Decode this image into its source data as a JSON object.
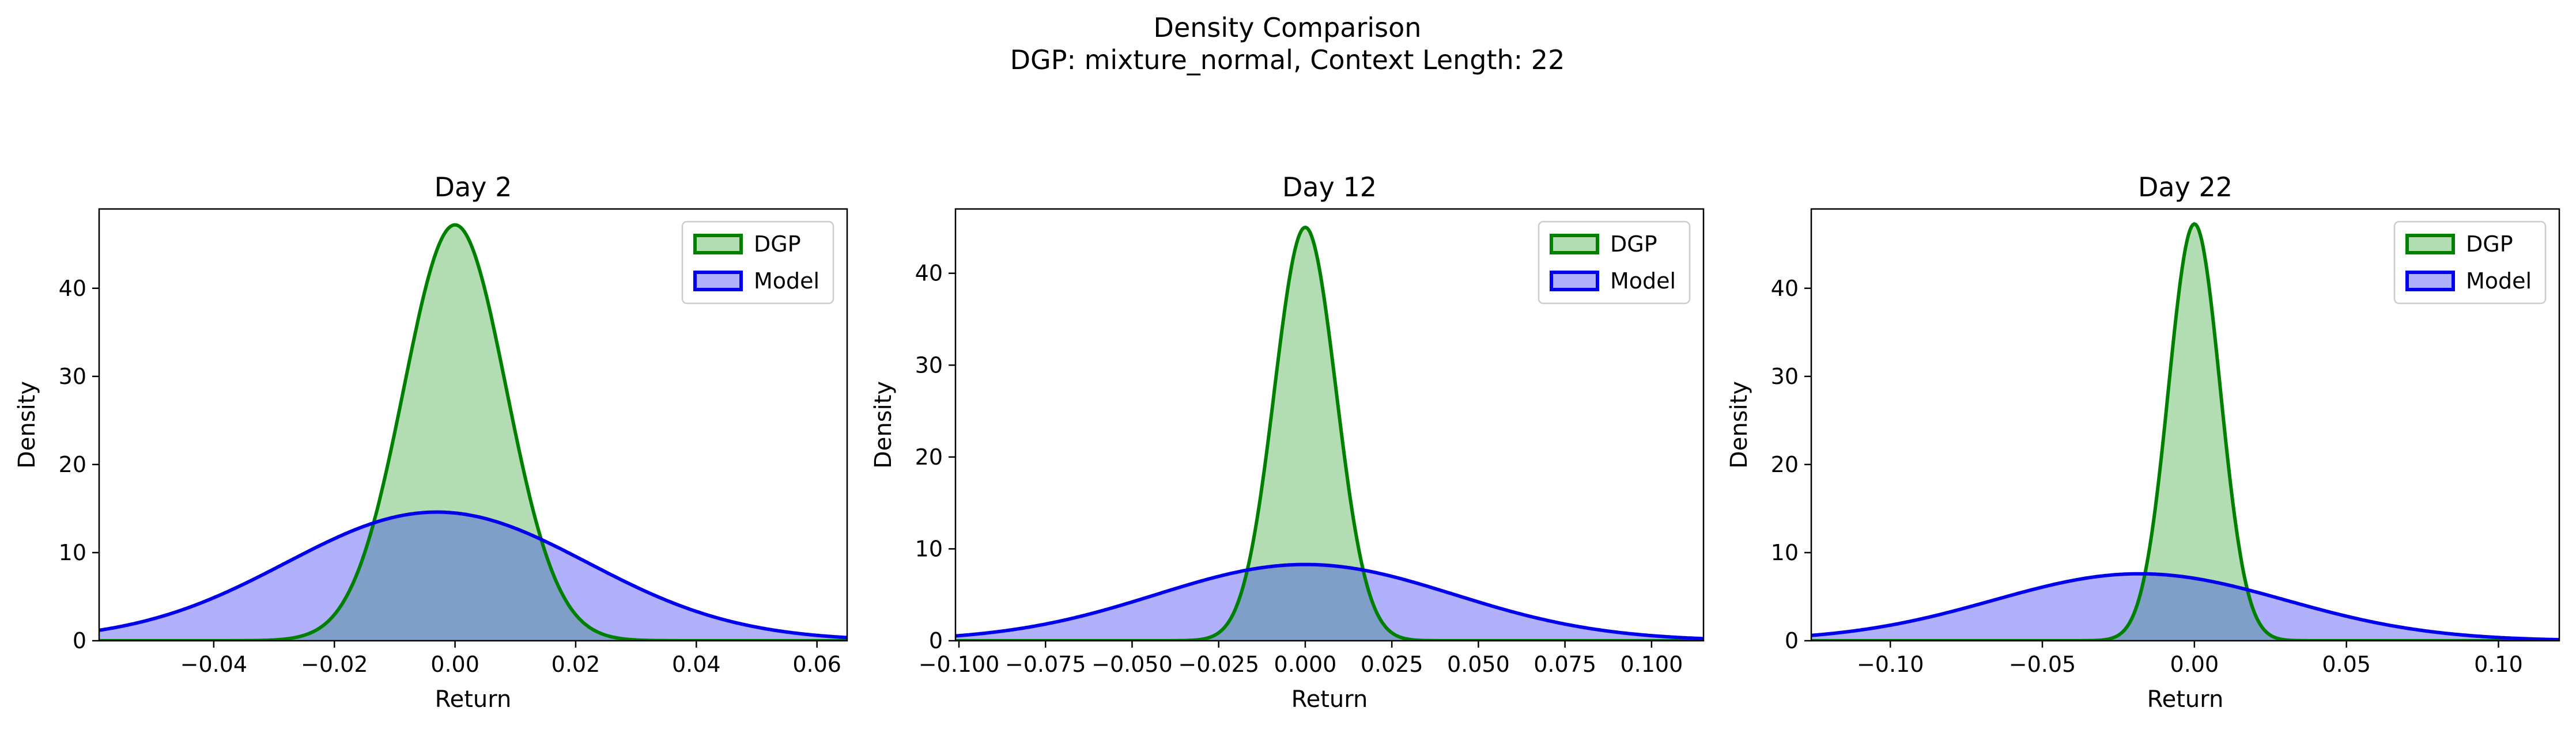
{
  "figure": {
    "title_line1": "Density Comparison",
    "title_line2": "DGP: mixture_normal, Context Length: 22"
  },
  "colors": {
    "dgp_line": "#008000",
    "dgp_fill": "#b2dcb2",
    "model_line": "#0000ee",
    "model_fill": "#b1b1fb",
    "overlap_fill": "#7f9ec8"
  },
  "chart_data": [
    {
      "type": "area",
      "title": "Day 2",
      "xlabel": "Return",
      "ylabel": "Density",
      "xlim": [
        -0.059,
        0.065
      ],
      "ylim": [
        0,
        49
      ],
      "xticks": [
        -0.04,
        -0.02,
        0.0,
        0.02,
        0.04,
        0.06
      ],
      "xtick_labels": [
        "−0.04",
        "−0.02",
        "0.00",
        "0.02",
        "0.04",
        "0.06"
      ],
      "yticks": [
        0,
        10,
        20,
        30,
        40
      ],
      "ytick_labels": [
        "0",
        "10",
        "20",
        "30",
        "40"
      ],
      "legend": {
        "position": "upper right",
        "entries": [
          "DGP",
          "Model"
        ]
      },
      "series": [
        {
          "name": "DGP",
          "peak_density": 47.2,
          "mean": 0.0,
          "std": 0.0085
        },
        {
          "name": "Model",
          "peak_density": 14.6,
          "mean": -0.003,
          "std": 0.025
        }
      ]
    },
    {
      "type": "area",
      "title": "Day 12",
      "xlabel": "Return",
      "ylabel": "Density",
      "xlim": [
        -0.101,
        0.115
      ],
      "ylim": [
        0,
        47
      ],
      "xticks": [
        -0.1,
        -0.075,
        -0.05,
        -0.025,
        0.0,
        0.025,
        0.05,
        0.075,
        0.1
      ],
      "xtick_labels": [
        "−0.100",
        "−0.075",
        "−0.050",
        "−0.025",
        "0.000",
        "0.025",
        "0.050",
        "0.075",
        "0.100"
      ],
      "yticks": [
        0,
        10,
        20,
        30,
        40
      ],
      "ytick_labels": [
        "0",
        "10",
        "20",
        "30",
        "40"
      ],
      "legend": {
        "position": "upper right",
        "entries": [
          "DGP",
          "Model"
        ]
      },
      "series": [
        {
          "name": "DGP",
          "peak_density": 45.0,
          "mean": 0.0,
          "std": 0.0089
        },
        {
          "name": "Model",
          "peak_density": 8.3,
          "mean": 0.0,
          "std": 0.043
        }
      ]
    },
    {
      "type": "area",
      "title": "Day 22",
      "xlabel": "Return",
      "ylabel": "Density",
      "xlim": [
        -0.126,
        0.12
      ],
      "ylim": [
        0,
        49
      ],
      "xticks": [
        -0.1,
        -0.05,
        0.0,
        0.05,
        0.1
      ],
      "xtick_labels": [
        "−0.10",
        "−0.05",
        "0.00",
        "0.05",
        "0.10"
      ],
      "yticks": [
        0,
        10,
        20,
        30,
        40
      ],
      "ytick_labels": [
        "0",
        "10",
        "20",
        "30",
        "40"
      ],
      "legend": {
        "position": "upper right",
        "entries": [
          "DGP",
          "Model"
        ]
      },
      "series": [
        {
          "name": "DGP",
          "peak_density": 47.3,
          "mean": 0.0,
          "std": 0.0085
        },
        {
          "name": "Model",
          "peak_density": 7.6,
          "mean": -0.018,
          "std": 0.048
        }
      ]
    }
  ]
}
